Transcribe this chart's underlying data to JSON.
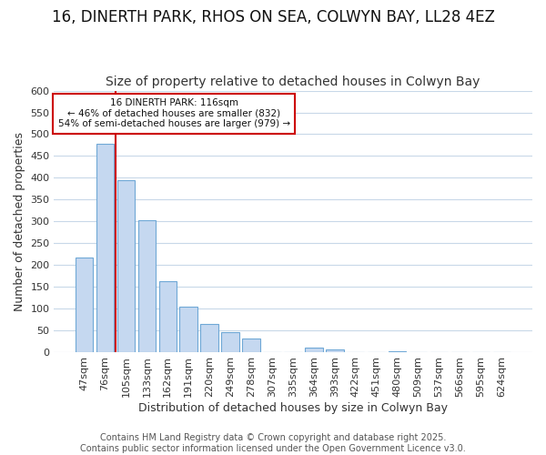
{
  "title": "16, DINERTH PARK, RHOS ON SEA, COLWYN BAY, LL28 4EZ",
  "subtitle": "Size of property relative to detached houses in Colwyn Bay",
  "xlabel": "Distribution of detached houses by size in Colwyn Bay",
  "ylabel": "Number of detached properties",
  "categories": [
    "47sqm",
    "76sqm",
    "105sqm",
    "133sqm",
    "162sqm",
    "191sqm",
    "220sqm",
    "249sqm",
    "278sqm",
    "307sqm",
    "335sqm",
    "364sqm",
    "393sqm",
    "422sqm",
    "451sqm",
    "480sqm",
    "509sqm",
    "537sqm",
    "566sqm",
    "595sqm",
    "624sqm"
  ],
  "values": [
    218,
    478,
    395,
    302,
    163,
    105,
    65,
    47,
    32,
    0,
    0,
    10,
    7,
    0,
    0,
    3,
    0,
    0,
    0,
    0,
    0
  ],
  "bar_color": "#c5d8f0",
  "bar_edge_color": "#6fa8d6",
  "red_line_x": 1.5,
  "marker_label": "16 DINERTH PARK: 116sqm",
  "marker_color": "#cc0000",
  "annotation_line1": "← 46% of detached houses are smaller (832)",
  "annotation_line2": "54% of semi-detached houses are larger (979) →",
  "ylim": [
    0,
    600
  ],
  "yticks": [
    0,
    50,
    100,
    150,
    200,
    250,
    300,
    350,
    400,
    450,
    500,
    550,
    600
  ],
  "footer_line1": "Contains HM Land Registry data © Crown copyright and database right 2025.",
  "footer_line2": "Contains public sector information licensed under the Open Government Licence v3.0.",
  "bg_color": "#ffffff",
  "plot_bg_color": "#ffffff",
  "grid_color": "#c8d8e8",
  "title_fontsize": 12,
  "subtitle_fontsize": 10,
  "axis_label_fontsize": 9,
  "tick_fontsize": 8,
  "footer_fontsize": 7
}
